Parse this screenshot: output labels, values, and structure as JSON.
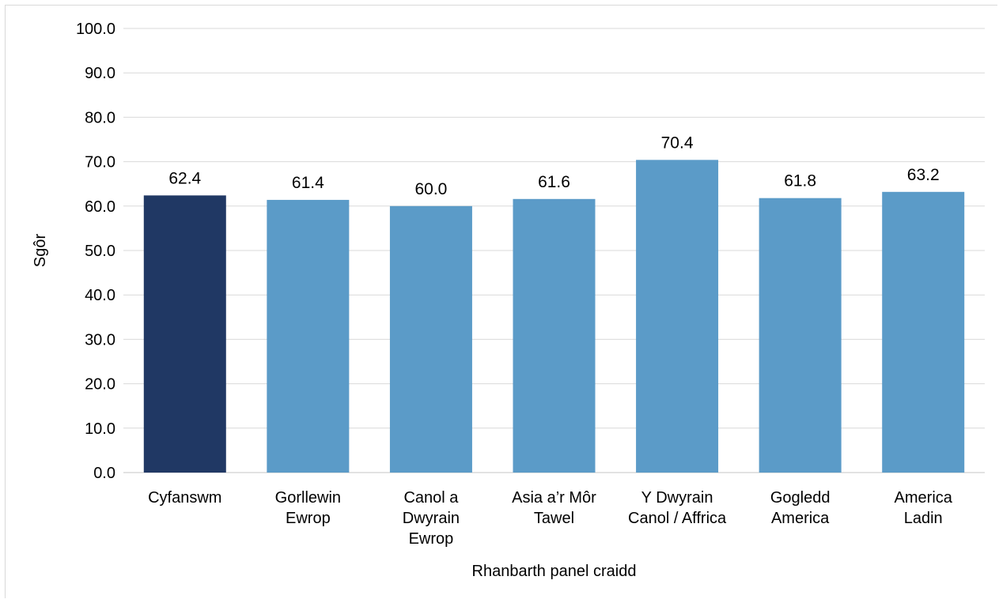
{
  "chart_data": {
    "type": "bar",
    "categories": [
      [
        "Cyfanswm"
      ],
      [
        "Gorllewin",
        "Ewrop"
      ],
      [
        "Canol a",
        "Dwyrain",
        "Ewrop"
      ],
      [
        "Asia a’r Môr",
        "Tawel"
      ],
      [
        "Y Dwyrain",
        "Canol / Affrica"
      ],
      [
        "Gogledd",
        "America"
      ],
      [
        "America",
        "Ladin"
      ]
    ],
    "values": [
      62.4,
      61.4,
      60.0,
      61.6,
      70.4,
      61.8,
      63.2
    ],
    "data_labels": [
      "62.4",
      "61.4",
      "60.0",
      "61.6",
      "70.4",
      "61.8",
      "63.2"
    ],
    "colors": [
      "#203864",
      "#5b9bc8",
      "#5b9bc8",
      "#5b9bc8",
      "#5b9bc8",
      "#5b9bc8",
      "#5b9bc8"
    ],
    "xlabel": "Rhanbarth panel craidd",
    "ylabel": "Sgôr",
    "ylim": [
      0,
      100
    ],
    "yticks": [
      "0.0",
      "10.0",
      "20.0",
      "30.0",
      "40.0",
      "50.0",
      "60.0",
      "70.0",
      "80.0",
      "90.0",
      "100.0"
    ],
    "grid": true,
    "gridline_color": "#d9d9d9"
  }
}
